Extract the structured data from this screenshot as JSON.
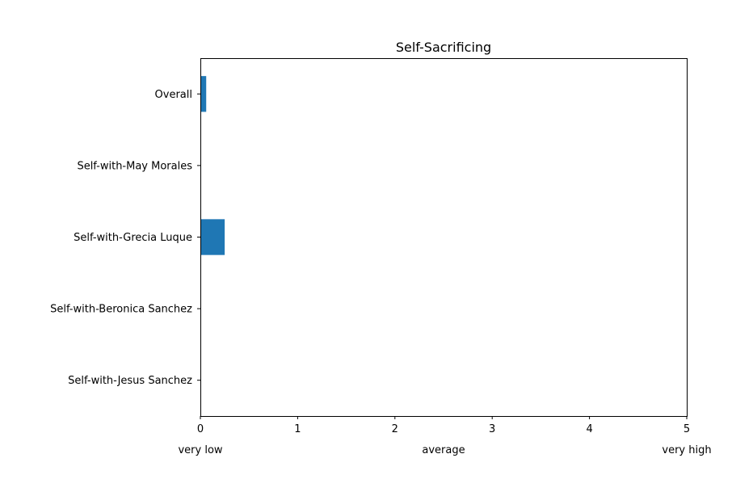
{
  "chart_data": {
    "type": "bar",
    "orientation": "horizontal",
    "title": "Self-Sacrificing",
    "categories": [
      "Overall",
      "Self-with-May Morales",
      "Self-with-Grecia Luque",
      "Self-with-Beronica Sanchez",
      "Self-with-Jesus Sanchez"
    ],
    "values": [
      0.06,
      0,
      0.25,
      0,
      0
    ],
    "xlim": [
      0,
      5
    ],
    "xticks": [
      "0",
      "1",
      "2",
      "3",
      "4",
      "5"
    ],
    "scale_labels": [
      "very low",
      "average",
      "very high"
    ],
    "grid": false,
    "bar_color": "#1f77b4"
  }
}
